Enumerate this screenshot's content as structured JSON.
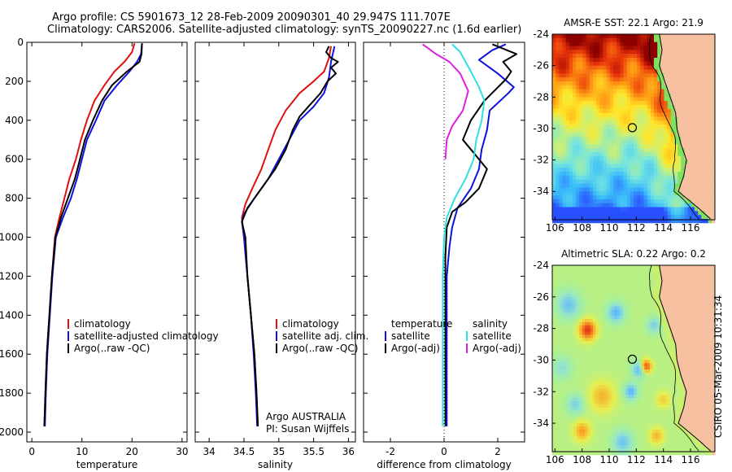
{
  "header": {
    "line1": "Argo profile: CS 5901673_12 28-Feb-2009 20090301_40 29.947S 111.707E",
    "line2": "Climatology: CARS2006. Satellite-adjusted climatology: synTS_20090227.nc (1.6d earlier)"
  },
  "credit": "CSIRO 05-Mar-2009 10:31:34",
  "colors": {
    "climatology": "#e01010",
    "satellite": "#1010e0",
    "argo": "#000000",
    "cyan": "#30e0e0",
    "magenta": "#e020e0",
    "land": "#f7c0a0"
  },
  "chart_data": [
    {
      "type": "line",
      "xlabel": "temperature",
      "xlim": [
        -1,
        31
      ],
      "xticks": [
        0,
        10,
        20,
        30
      ],
      "ylim": [
        0,
        2050
      ],
      "yticks": [
        0,
        200,
        400,
        600,
        800,
        1000,
        1200,
        1400,
        1600,
        1800,
        2000
      ],
      "y_reversed": true,
      "legend_placement": "lower-right",
      "legend": [
        {
          "label": "climatology",
          "color": "#e01010"
        },
        {
          "label": "satellite-adjusted climatology",
          "color": "#1010e0"
        },
        {
          "label": "Argo(..raw -QC)",
          "color": "#000000"
        }
      ],
      "series": [
        {
          "name": "climatology",
          "color": "#e01010",
          "points": [
            [
              20.5,
              5
            ],
            [
              20.0,
              50
            ],
            [
              18.5,
              100
            ],
            [
              16.5,
              150
            ],
            [
              14.5,
              220
            ],
            [
              12.5,
              300
            ],
            [
              11.0,
              400
            ],
            [
              9.8,
              500
            ],
            [
              8.8,
              600
            ],
            [
              7.5,
              700
            ],
            [
              6.5,
              800
            ],
            [
              5.5,
              900
            ],
            [
              4.6,
              1000
            ],
            [
              4.0,
              1200
            ],
            [
              3.5,
              1400
            ],
            [
              3.0,
              1600
            ],
            [
              2.7,
              1800
            ],
            [
              2.5,
              1970
            ]
          ]
        },
        {
          "name": "satellite-adjusted climatology",
          "color": "#1010e0",
          "points": [
            [
              22.0,
              5
            ],
            [
              21.8,
              60
            ],
            [
              21.0,
              100
            ],
            [
              19.5,
              150
            ],
            [
              17.0,
              220
            ],
            [
              14.5,
              300
            ],
            [
              12.8,
              400
            ],
            [
              11.0,
              500
            ],
            [
              10.0,
              600
            ],
            [
              9.0,
              700
            ],
            [
              7.8,
              800
            ],
            [
              6.2,
              900
            ],
            [
              4.8,
              1000
            ],
            [
              4.1,
              1200
            ],
            [
              3.6,
              1400
            ],
            [
              3.1,
              1600
            ],
            [
              2.8,
              1800
            ],
            [
              2.6,
              1970
            ]
          ]
        },
        {
          "name": "Argo(..raw -QC)",
          "color": "#000000",
          "points": [
            [
              22.0,
              5
            ],
            [
              21.9,
              60
            ],
            [
              21.5,
              100
            ],
            [
              19.0,
              150
            ],
            [
              16.0,
              220
            ],
            [
              14.0,
              300
            ],
            [
              12.2,
              400
            ],
            [
              10.6,
              500
            ],
            [
              9.6,
              600
            ],
            [
              8.6,
              700
            ],
            [
              7.2,
              800
            ],
            [
              5.8,
              900
            ],
            [
              4.7,
              1000
            ],
            [
              4.0,
              1200
            ],
            [
              3.5,
              1400
            ],
            [
              3.0,
              1600
            ],
            [
              2.7,
              1800
            ],
            [
              2.5,
              1970
            ]
          ]
        }
      ]
    },
    {
      "type": "line",
      "xlabel": "salinity",
      "xlim": [
        33.8,
        36.1
      ],
      "xticks": [
        34,
        34.5,
        35,
        35.5,
        36
      ],
      "xticklabels": [
        "34",
        "34.5",
        "35",
        "35.5",
        "36"
      ],
      "ylim": [
        0,
        2050
      ],
      "y_reversed": true,
      "legend_placement": "center-right",
      "legend": [
        {
          "label": "climatology",
          "color": "#e01010"
        },
        {
          "label": "satellite adj. clim.",
          "color": "#1010e0"
        },
        {
          "label": "Argo(..raw -QC)",
          "color": "#000000"
        }
      ],
      "annotation": [
        "Argo AUSTRALIA",
        "PI: Susan Wijffels"
      ],
      "series": [
        {
          "name": "climatology",
          "color": "#e01010",
          "points": [
            [
              35.75,
              20
            ],
            [
              35.72,
              80
            ],
            [
              35.65,
              150
            ],
            [
              35.5,
              200
            ],
            [
              35.3,
              260
            ],
            [
              35.1,
              350
            ],
            [
              34.95,
              450
            ],
            [
              34.85,
              550
            ],
            [
              34.75,
              650
            ],
            [
              34.62,
              750
            ],
            [
              34.52,
              830
            ],
            [
              34.47,
              900
            ],
            [
              34.5,
              1000
            ],
            [
              34.55,
              1200
            ],
            [
              34.6,
              1400
            ],
            [
              34.65,
              1600
            ],
            [
              34.68,
              1800
            ],
            [
              34.7,
              1970
            ]
          ]
        },
        {
          "name": "satellite adj. clim.",
          "color": "#1010e0",
          "points": [
            [
              35.8,
              20
            ],
            [
              35.75,
              100
            ],
            [
              35.72,
              180
            ],
            [
              35.65,
              260
            ],
            [
              35.5,
              330
            ],
            [
              35.3,
              400
            ],
            [
              35.15,
              500
            ],
            [
              35.0,
              600
            ],
            [
              34.85,
              700
            ],
            [
              34.65,
              800
            ],
            [
              34.5,
              880
            ],
            [
              34.47,
              920
            ],
            [
              34.5,
              1000
            ],
            [
              34.55,
              1200
            ],
            [
              34.6,
              1400
            ],
            [
              34.64,
              1600
            ],
            [
              34.67,
              1800
            ],
            [
              34.69,
              1970
            ]
          ]
        },
        {
          "name": "Argo(..raw -QC)",
          "color": "#000000",
          "points": [
            [
              35.72,
              20
            ],
            [
              35.68,
              50
            ],
            [
              35.75,
              80
            ],
            [
              35.85,
              100
            ],
            [
              35.75,
              130
            ],
            [
              35.82,
              160
            ],
            [
              35.7,
              200
            ],
            [
              35.6,
              260
            ],
            [
              35.45,
              320
            ],
            [
              35.3,
              380
            ],
            [
              35.2,
              450
            ],
            [
              35.1,
              550
            ],
            [
              34.95,
              650
            ],
            [
              34.75,
              750
            ],
            [
              34.55,
              850
            ],
            [
              34.47,
              920
            ],
            [
              34.52,
              1000
            ],
            [
              34.55,
              1200
            ],
            [
              34.6,
              1400
            ],
            [
              34.65,
              1600
            ],
            [
              34.68,
              1800
            ],
            [
              34.7,
              1970
            ]
          ]
        }
      ]
    },
    {
      "type": "line",
      "xlabel": "difference from climatology",
      "xlim": [
        -3,
        3
      ],
      "xticks": [
        -2,
        0,
        2
      ],
      "ylim": [
        0,
        2050
      ],
      "y_reversed": true,
      "reference_line_x": 0,
      "legend": [
        {
          "group": "temperature",
          "label": "satellite",
          "color": "#1010e0"
        },
        {
          "group": "temperature",
          "label": "Argo(-adj)",
          "color": "#000000"
        },
        {
          "group": "salinity",
          "label": "satellite",
          "color": "#30e0e0"
        },
        {
          "group": "salinity",
          "label": "Argo(-adj)",
          "color": "#e020e0"
        }
      ],
      "series": [
        {
          "name": "temperature satellite",
          "color": "#1010e0",
          "points": [
            [
              2.3,
              10
            ],
            [
              1.8,
              40
            ],
            [
              1.3,
              90
            ],
            [
              2.0,
              160
            ],
            [
              2.6,
              230
            ],
            [
              2.4,
              260
            ],
            [
              1.7,
              350
            ],
            [
              1.6,
              450
            ],
            [
              1.4,
              550
            ],
            [
              1.3,
              650
            ],
            [
              1.0,
              750
            ],
            [
              0.5,
              850
            ],
            [
              0.3,
              950
            ],
            [
              0.2,
              1050
            ],
            [
              0.1,
              1200
            ],
            [
              0.1,
              1400
            ],
            [
              0.1,
              1600
            ],
            [
              0.1,
              1800
            ],
            [
              0.1,
              1970
            ]
          ]
        },
        {
          "name": "temperature Argo(-adj)",
          "color": "#000000",
          "points": [
            [
              1.8,
              10
            ],
            [
              2.7,
              60
            ],
            [
              2.2,
              100
            ],
            [
              2.5,
              150
            ],
            [
              2.3,
              190
            ],
            [
              1.5,
              300
            ],
            [
              1.0,
              400
            ],
            [
              0.7,
              500
            ],
            [
              1.0,
              550
            ],
            [
              1.6,
              650
            ],
            [
              1.3,
              750
            ],
            [
              0.8,
              820
            ],
            [
              0.3,
              870
            ],
            [
              0.1,
              950
            ],
            [
              0.05,
              1100
            ],
            [
              0.05,
              1300
            ],
            [
              0.05,
              1600
            ],
            [
              0.05,
              1970
            ]
          ]
        },
        {
          "name": "salinity satellite",
          "color": "#30e0e0",
          "points": [
            [
              0.3,
              10
            ],
            [
              0.6,
              50
            ],
            [
              0.8,
              100
            ],
            [
              1.0,
              150
            ],
            [
              1.3,
              230
            ],
            [
              1.5,
              300
            ],
            [
              1.4,
              400
            ],
            [
              1.2,
              500
            ],
            [
              1.1,
              600
            ],
            [
              0.8,
              700
            ],
            [
              0.4,
              800
            ],
            [
              0.1,
              900
            ],
            [
              0.0,
              1000
            ],
            [
              -0.05,
              1200
            ],
            [
              -0.05,
              1400
            ],
            [
              -0.05,
              1600
            ],
            [
              -0.05,
              1970
            ]
          ]
        },
        {
          "name": "salinity Argo(-adj)",
          "color": "#e020e0",
          "points": [
            [
              -0.8,
              10
            ],
            [
              -0.6,
              30
            ],
            [
              -0.3,
              60
            ],
            [
              0.2,
              100
            ],
            [
              0.6,
              160
            ],
            [
              0.9,
              250
            ],
            [
              0.7,
              350
            ],
            [
              0.3,
              430
            ],
            [
              0.1,
              500
            ],
            [
              0.05,
              600
            ]
          ]
        }
      ]
    },
    {
      "type": "heatmap",
      "title": "AMSR-E SST: 22.1  Argo: 21.9",
      "xlim": [
        105.8,
        117.8
      ],
      "ylim": [
        -35.8,
        -24
      ],
      "xticks": [
        106,
        108,
        110,
        112,
        114,
        116
      ],
      "yticks": [
        -24,
        -26,
        -28,
        -30,
        -32,
        -34
      ],
      "marker": {
        "lon": 111.707,
        "lat": -29.947
      }
    },
    {
      "type": "heatmap",
      "title": "Altimetric SLA: 0.22  Argo: 0.2",
      "xlim": [
        105.8,
        117.8
      ],
      "ylim": [
        -35.8,
        -24
      ],
      "xticks": [
        106,
        108,
        110,
        112,
        114,
        116
      ],
      "yticks": [
        -24,
        -26,
        -28,
        -30,
        -32,
        -34
      ],
      "marker": {
        "lon": 111.707,
        "lat": -29.947
      }
    }
  ]
}
